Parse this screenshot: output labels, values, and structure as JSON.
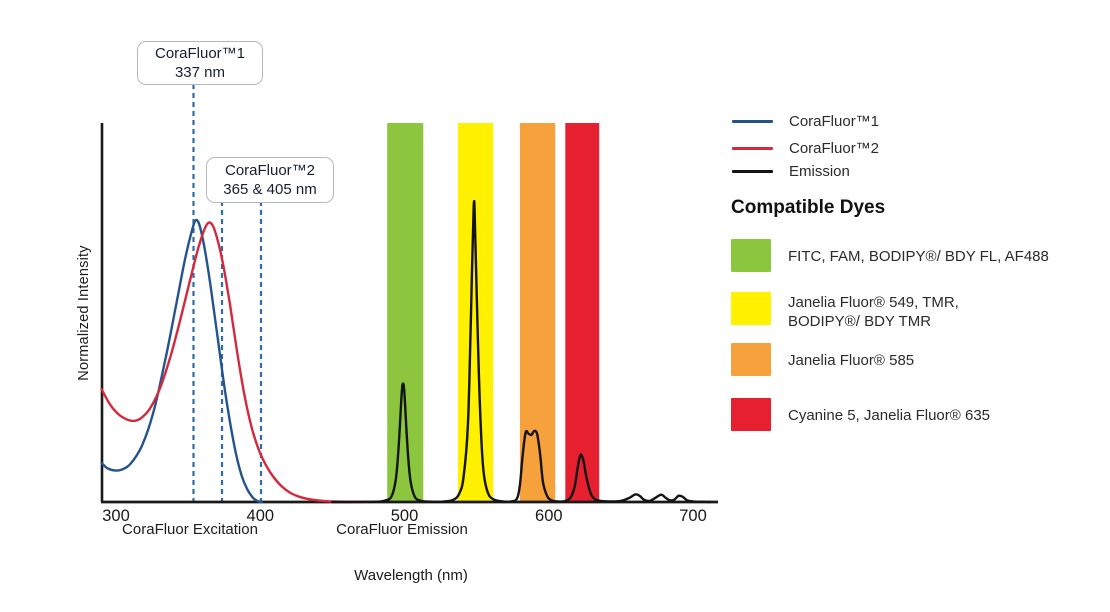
{
  "chart_data": {
    "type": "line",
    "title": "",
    "xlabel": "Wavelength (nm)",
    "ylabel": "Normalized Intensity",
    "x_ticks": [
      300,
      400,
      500,
      600,
      700
    ],
    "xlim": [
      290,
      717
    ],
    "ylim": [
      0,
      1.35
    ],
    "grid": false,
    "axis_sections": [
      {
        "text": "CoraFluor Excitation",
        "center_nm": 351
      },
      {
        "text": "CoraFluor Emission",
        "center_nm": 498
      }
    ],
    "annotations": [
      {
        "title": "CoraFluor™1",
        "subtitle": "337 nm",
        "lines_nm": [
          353.7
        ]
      },
      {
        "title": "CoraFluor™2",
        "subtitle": "365 & 405 nm",
        "lines_nm": [
          373.5,
          400.5
        ]
      }
    ],
    "annotation_line_color": "#2f6da8",
    "filter_bands": [
      {
        "name": "FITC / AF488 band",
        "color": "#8CC63E",
        "nm": [
          488,
          513
        ]
      },
      {
        "name": "JF549 / TMR band",
        "color": "#FFF100",
        "nm": [
          537,
          561.5
        ]
      },
      {
        "name": "JF585 band",
        "color": "#F6A13B",
        "nm": [
          580,
          604.5
        ]
      },
      {
        "name": "Cy5 / JF635 band",
        "color": "#E7202F",
        "nm": [
          611.5,
          635
        ]
      }
    ],
    "series": [
      {
        "name": "CoraFluor™1",
        "color": "#24548E",
        "points": [
          [
            290,
            0.138
          ],
          [
            294,
            0.12
          ],
          [
            299,
            0.112
          ],
          [
            304,
            0.115
          ],
          [
            310,
            0.135
          ],
          [
            318,
            0.2
          ],
          [
            326,
            0.32
          ],
          [
            334,
            0.5
          ],
          [
            341,
            0.68
          ],
          [
            347,
            0.84
          ],
          [
            352,
            0.95
          ],
          [
            355.5,
            1.0
          ],
          [
            359,
            0.96
          ],
          [
            364,
            0.82
          ],
          [
            370,
            0.6
          ],
          [
            376,
            0.38
          ],
          [
            382,
            0.2
          ],
          [
            387,
            0.095
          ],
          [
            391,
            0.045
          ],
          [
            395,
            0.015
          ],
          [
            398,
            0.004
          ],
          [
            401,
            0
          ]
        ]
      },
      {
        "name": "CoraFluor™2",
        "color": "#D4293D",
        "points": [
          [
            290,
            0.4
          ],
          [
            296,
            0.345
          ],
          [
            302,
            0.31
          ],
          [
            308,
            0.292
          ],
          [
            313,
            0.288
          ],
          [
            318,
            0.3
          ],
          [
            324,
            0.335
          ],
          [
            331,
            0.41
          ],
          [
            338,
            0.52
          ],
          [
            345,
            0.655
          ],
          [
            351,
            0.78
          ],
          [
            357,
            0.9
          ],
          [
            362,
            0.975
          ],
          [
            365.5,
            0.99
          ],
          [
            369,
            0.955
          ],
          [
            374,
            0.85
          ],
          [
            379,
            0.7
          ],
          [
            384,
            0.53
          ],
          [
            389,
            0.38
          ],
          [
            394,
            0.265
          ],
          [
            399,
            0.185
          ],
          [
            404,
            0.13
          ],
          [
            409,
            0.09
          ],
          [
            415,
            0.055
          ],
          [
            421,
            0.032
          ],
          [
            428,
            0.017
          ],
          [
            436,
            0.008
          ],
          [
            446,
            0.003
          ],
          [
            460,
            0.001
          ],
          [
            475,
            0
          ]
        ]
      },
      {
        "name": "Emission",
        "color": "#141414",
        "points": [
          [
            450,
            0
          ],
          [
            480,
            0.001
          ],
          [
            487,
            0.006
          ],
          [
            491,
            0.02
          ],
          [
            494,
            0.08
          ],
          [
            496,
            0.2
          ],
          [
            498,
            0.38
          ],
          [
            499,
            0.42
          ],
          [
            500,
            0.38
          ],
          [
            502,
            0.2
          ],
          [
            504,
            0.08
          ],
          [
            507,
            0.02
          ],
          [
            511,
            0.005
          ],
          [
            518,
            0.001
          ],
          [
            528,
            0.002
          ],
          [
            534,
            0.008
          ],
          [
            538,
            0.03
          ],
          [
            541,
            0.09
          ],
          [
            544,
            0.28
          ],
          [
            546,
            0.65
          ],
          [
            548,
            1.05
          ],
          [
            549,
            0.95
          ],
          [
            551,
            0.55
          ],
          [
            553,
            0.25
          ],
          [
            555,
            0.1
          ],
          [
            558,
            0.03
          ],
          [
            562,
            0.009
          ],
          [
            568,
            0.002
          ],
          [
            574,
            0.002
          ],
          [
            578,
            0.012
          ],
          [
            580,
            0.06
          ],
          [
            582,
            0.17
          ],
          [
            584,
            0.247
          ],
          [
            586,
            0.242
          ],
          [
            588,
            0.238
          ],
          [
            590,
            0.252
          ],
          [
            592,
            0.24
          ],
          [
            594,
            0.17
          ],
          [
            596,
            0.07
          ],
          [
            599,
            0.02
          ],
          [
            602,
            0.006
          ],
          [
            606,
            0.002
          ],
          [
            611,
            0.003
          ],
          [
            615,
            0.015
          ],
          [
            618,
            0.055
          ],
          [
            620,
            0.12
          ],
          [
            622,
            0.167
          ],
          [
            624,
            0.148
          ],
          [
            626,
            0.09
          ],
          [
            629,
            0.032
          ],
          [
            632,
            0.01
          ],
          [
            636,
            0.004
          ],
          [
            642,
            0.002
          ],
          [
            650,
            0.004
          ],
          [
            656,
            0.015
          ],
          [
            660,
            0.027
          ],
          [
            663,
            0.022
          ],
          [
            666,
            0.008
          ],
          [
            670,
            0.004
          ],
          [
            674,
            0.015
          ],
          [
            678,
            0.026
          ],
          [
            681,
            0.015
          ],
          [
            684,
            0.006
          ],
          [
            687,
            0.008
          ],
          [
            690,
            0.022
          ],
          [
            693,
            0.018
          ],
          [
            696,
            0.006
          ],
          [
            700,
            0.002
          ],
          [
            706,
            0.001
          ],
          [
            712,
            0
          ]
        ]
      }
    ],
    "emission_peak_labels_nm": [
      500,
      548,
      590,
      622
    ]
  },
  "legend": {
    "items": [
      {
        "label": "CoraFluor™1",
        "color": "#24548E"
      },
      {
        "label": "CoraFluor™2",
        "color": "#D4293D"
      },
      {
        "label": "Emission",
        "color": "#141414"
      }
    ]
  },
  "compatible_dyes": {
    "heading": "Compatible Dyes",
    "items": [
      {
        "color": "#8CC63E",
        "label": "FITC, FAM, BODIPY®/ BDY FL, AF488"
      },
      {
        "color": "#FFF100",
        "label": "Janelia Fluor® 549, TMR,\nBODIPY®/ BDY TMR"
      },
      {
        "color": "#F6A13B",
        "label": "Janelia Fluor® 585"
      },
      {
        "color": "#E7202F",
        "label": "Cyanine 5, Janelia Fluor® 635"
      }
    ]
  }
}
